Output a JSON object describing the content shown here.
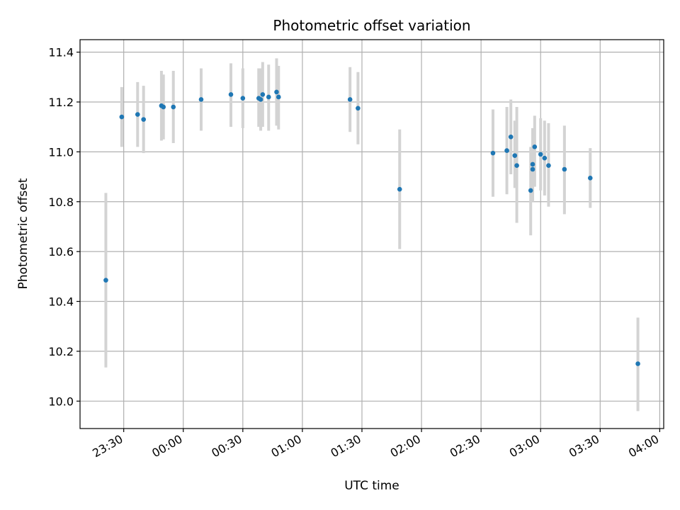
{
  "chart_data": {
    "type": "scatter",
    "title": "Photometric offset variation",
    "xlabel": "UTC time",
    "ylabel": "Photometric offset",
    "xlim": [
      "23:08",
      "04:02"
    ],
    "ylim": [
      9.89,
      11.45
    ],
    "x_ticks": [
      "23:30",
      "00:00",
      "00:30",
      "01:00",
      "01:30",
      "02:00",
      "02:30",
      "03:00",
      "03:30",
      "04:00"
    ],
    "y_ticks": [
      "10.0",
      "10.2",
      "10.4",
      "10.6",
      "10.8",
      "11.0",
      "11.2",
      "11.4"
    ],
    "grid": true,
    "colors": {
      "point": "#1f77b4",
      "errorbar": "#d3d3d3",
      "grid": "#b0b0b0",
      "axis": "#000000"
    },
    "points": [
      {
        "x": "23:21",
        "y": 10.485,
        "lo": 10.135,
        "hi": 10.835
      },
      {
        "x": "23:29",
        "y": 11.14,
        "lo": 11.02,
        "hi": 11.26
      },
      {
        "x": "23:37",
        "y": 11.15,
        "lo": 11.02,
        "hi": 11.28
      },
      {
        "x": "23:40",
        "y": 11.13,
        "lo": 10.995,
        "hi": 11.265
      },
      {
        "x": "23:49",
        "y": 11.185,
        "lo": 11.045,
        "hi": 11.325
      },
      {
        "x": "23:50",
        "y": 11.18,
        "lo": 11.05,
        "hi": 11.31
      },
      {
        "x": "23:55",
        "y": 11.18,
        "lo": 11.035,
        "hi": 11.325
      },
      {
        "x": "00:09",
        "y": 11.21,
        "lo": 11.085,
        "hi": 11.335
      },
      {
        "x": "00:24",
        "y": 11.23,
        "lo": 11.1,
        "hi": 11.355
      },
      {
        "x": "00:30",
        "y": 11.215,
        "lo": 11.095,
        "hi": 11.335
      },
      {
        "x": "00:38",
        "y": 11.215,
        "lo": 11.1,
        "hi": 11.335
      },
      {
        "x": "00:39",
        "y": 11.21,
        "lo": 11.085,
        "hi": 11.335
      },
      {
        "x": "00:40",
        "y": 11.23,
        "lo": 11.1,
        "hi": 11.36
      },
      {
        "x": "00:43",
        "y": 11.22,
        "lo": 11.085,
        "hi": 11.35
      },
      {
        "x": "00:47",
        "y": 11.24,
        "lo": 11.105,
        "hi": 11.375
      },
      {
        "x": "00:48",
        "y": 11.22,
        "lo": 11.09,
        "hi": 11.345
      },
      {
        "x": "01:24",
        "y": 11.21,
        "lo": 11.08,
        "hi": 11.34
      },
      {
        "x": "01:28",
        "y": 11.175,
        "lo": 11.03,
        "hi": 11.32
      },
      {
        "x": "01:49",
        "y": 10.85,
        "lo": 10.61,
        "hi": 11.09
      },
      {
        "x": "02:36",
        "y": 10.995,
        "lo": 10.82,
        "hi": 11.17
      },
      {
        "x": "02:43",
        "y": 11.005,
        "lo": 10.83,
        "hi": 11.18
      },
      {
        "x": "02:45",
        "y": 11.06,
        "lo": 10.91,
        "hi": 11.21
      },
      {
        "x": "02:47",
        "y": 10.985,
        "lo": 10.855,
        "hi": 11.125
      },
      {
        "x": "02:48",
        "y": 10.945,
        "lo": 10.715,
        "hi": 11.18
      },
      {
        "x": "02:55",
        "y": 10.845,
        "lo": 10.665,
        "hi": 11.02
      },
      {
        "x": "02:56",
        "y": 10.93,
        "lo": 10.8,
        "hi": 11.065
      },
      {
        "x": "02:56",
        "y": 10.95,
        "lo": 10.815,
        "hi": 11.095
      },
      {
        "x": "02:57",
        "y": 11.02,
        "lo": 10.86,
        "hi": 11.145
      },
      {
        "x": "03:00",
        "y": 10.99,
        "lo": 10.845,
        "hi": 11.135
      },
      {
        "x": "03:02",
        "y": 10.975,
        "lo": 10.825,
        "hi": 11.125
      },
      {
        "x": "03:04",
        "y": 10.945,
        "lo": 10.78,
        "hi": 11.115
      },
      {
        "x": "03:12",
        "y": 10.93,
        "lo": 10.75,
        "hi": 11.105
      },
      {
        "x": "03:25",
        "y": 10.895,
        "lo": 10.775,
        "hi": 11.015
      },
      {
        "x": "03:49",
        "y": 10.15,
        "lo": 9.96,
        "hi": 10.335
      }
    ]
  }
}
